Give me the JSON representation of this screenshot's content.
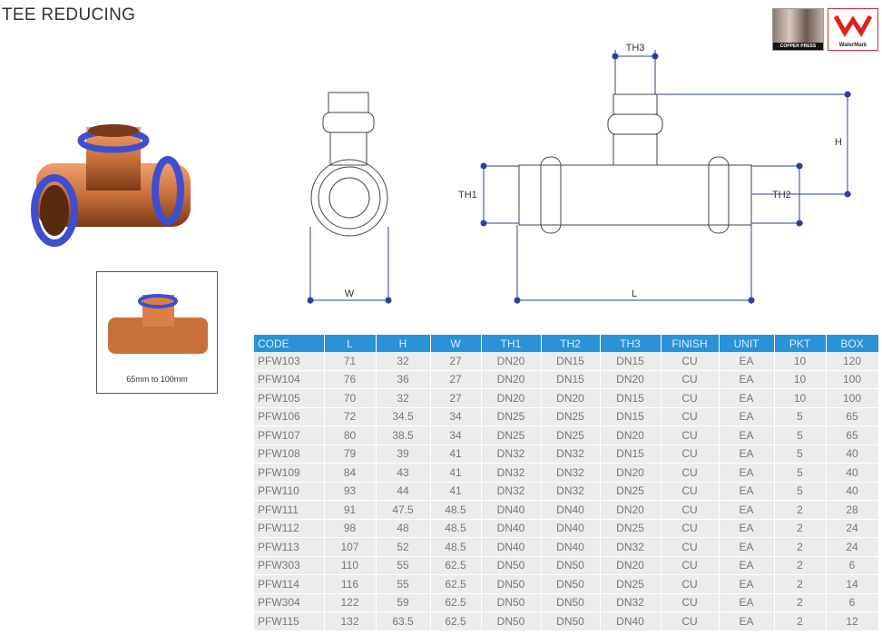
{
  "title": "TEE REDUCING",
  "logos": {
    "copper_press": "COPPER PRESS",
    "watermark": "WaterMark"
  },
  "thumbnail_caption": "65mm to 100mm",
  "dimension_labels": {
    "th3": "TH3",
    "h": "H",
    "th1": "TH1",
    "th2": "TH2",
    "w": "W",
    "l": "L"
  },
  "colors": {
    "header": "#2a92d6",
    "row": "#ececec",
    "dimension": "#2b3fa0",
    "copper": "#c8703a",
    "seal": "#3d4fd0"
  },
  "table": {
    "headers": [
      "CODE",
      "L",
      "H",
      "W",
      "TH1",
      "TH2",
      "TH3",
      "FINISH",
      "UNIT",
      "PKT",
      "BOX"
    ],
    "rows": [
      [
        "PFW103",
        "71",
        "32",
        "27",
        "DN20",
        "DN15",
        "DN15",
        "CU",
        "EA",
        "10",
        "120"
      ],
      [
        "PFW104",
        "76",
        "36",
        "27",
        "DN20",
        "DN15",
        "DN20",
        "CU",
        "EA",
        "10",
        "100"
      ],
      [
        "PFW105",
        "70",
        "32",
        "27",
        "DN20",
        "DN20",
        "DN15",
        "CU",
        "EA",
        "10",
        "100"
      ],
      [
        "PFW106",
        "72",
        "34.5",
        "34",
        "DN25",
        "DN25",
        "DN15",
        "CU",
        "EA",
        "5",
        "65"
      ],
      [
        "PFW107",
        "80",
        "38.5",
        "34",
        "DN25",
        "DN25",
        "DN20",
        "CU",
        "EA",
        "5",
        "65"
      ],
      [
        "PFW108",
        "79",
        "39",
        "41",
        "DN32",
        "DN32",
        "DN15",
        "CU",
        "EA",
        "5",
        "40"
      ],
      [
        "PFW109",
        "84",
        "43",
        "41",
        "DN32",
        "DN32",
        "DN20",
        "CU",
        "EA",
        "5",
        "40"
      ],
      [
        "PFW110",
        "93",
        "44",
        "41",
        "DN32",
        "DN32",
        "DN25",
        "CU",
        "EA",
        "5",
        "40"
      ],
      [
        "PFW111",
        "91",
        "47.5",
        "48.5",
        "DN40",
        "DN40",
        "DN20",
        "CU",
        "EA",
        "2",
        "28"
      ],
      [
        "PFW112",
        "98",
        "48",
        "48.5",
        "DN40",
        "DN40",
        "DN25",
        "CU",
        "EA",
        "2",
        "24"
      ],
      [
        "PFW113",
        "107",
        "52",
        "48.5",
        "DN40",
        "DN40",
        "DN32",
        "CU",
        "EA",
        "2",
        "24"
      ],
      [
        "PFW303",
        "110",
        "55",
        "62.5",
        "DN50",
        "DN50",
        "DN20",
        "CU",
        "EA",
        "2",
        "6"
      ],
      [
        "PFW114",
        "116",
        "55",
        "62.5",
        "DN50",
        "DN50",
        "DN25",
        "CU",
        "EA",
        "2",
        "14"
      ],
      [
        "PFW304",
        "122",
        "59",
        "62.5",
        "DN50",
        "DN50",
        "DN32",
        "CU",
        "EA",
        "2",
        "6"
      ],
      [
        "PFW115",
        "132",
        "63.5",
        "62.5",
        "DN50",
        "DN50",
        "DN40",
        "CU",
        "EA",
        "2",
        "12"
      ]
    ]
  }
}
